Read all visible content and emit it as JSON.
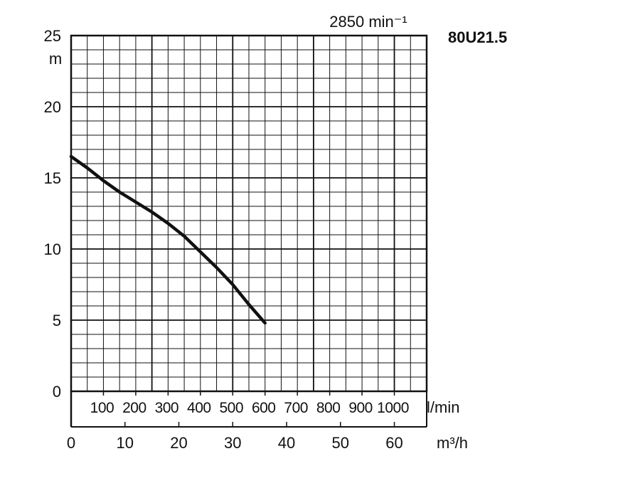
{
  "chart_data": {
    "type": "line",
    "title": "80U21.5",
    "speed_label": "2850 min⁻¹",
    "y_axis": {
      "unit": "m",
      "range": [
        0,
        25
      ],
      "ticks": [
        0,
        5,
        10,
        15,
        20,
        25
      ]
    },
    "flow_lpm_axis": {
      "unit": "l/min",
      "ticks": [
        100,
        200,
        300,
        400,
        500,
        600,
        700,
        800,
        900,
        1000
      ]
    },
    "flow_m3h_axis": {
      "unit": "m³/h",
      "range": [
        0,
        66
      ],
      "ticks": [
        0,
        10,
        20,
        30,
        40,
        50,
        60
      ]
    },
    "grid": true,
    "series": [
      {
        "color": "#111111",
        "x_m3h": [
          0,
          3,
          6,
          9,
          12,
          15,
          18,
          21,
          24,
          27,
          30,
          33,
          36
        ],
        "head_m": [
          16.5,
          15.7,
          14.8,
          14.0,
          13.3,
          12.6,
          11.8,
          10.9,
          9.8,
          8.7,
          7.5,
          6.1,
          4.8
        ]
      }
    ]
  }
}
